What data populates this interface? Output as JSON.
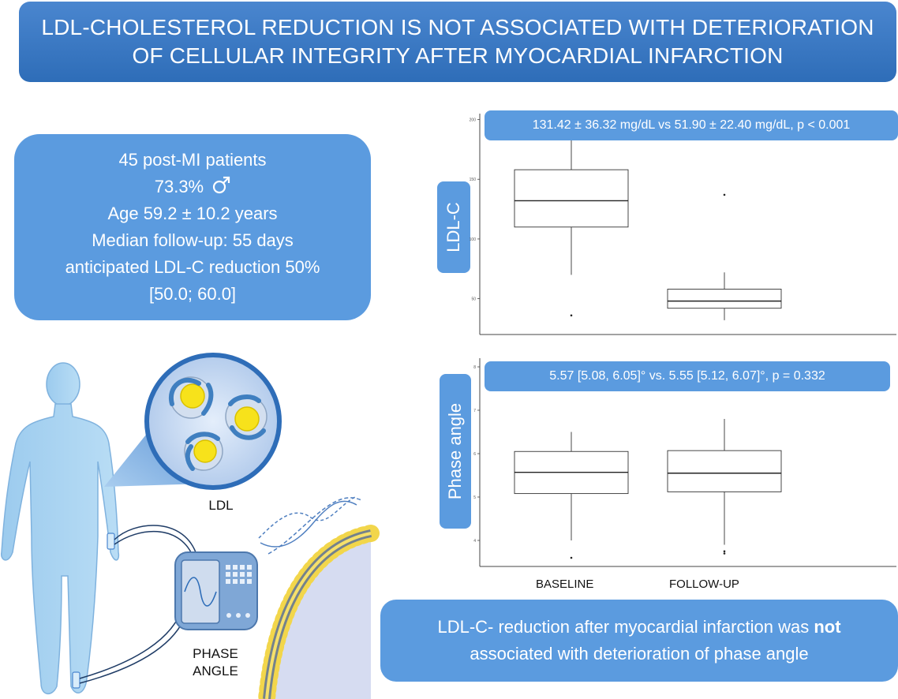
{
  "title": {
    "line1": "LDL-CHOLESTEROL REDUCTION IS NOT ASSOCIATED WITH DETERIORATION",
    "line2": "OF CELLULAR INTEGRITY AFTER MYOCARDIAL INFARCTION"
  },
  "study": {
    "patients": "45 post-MI patients",
    "male_pct": "73.3%",
    "age": "Age 59.2 ± 10.2 years",
    "followup": "Median follow-up: 55 days",
    "reduction_line1": "anticipated LDL-C reduction 50%",
    "reduction_line2": "[50.0; 60.0]"
  },
  "illustration": {
    "ldl_label": "LDL",
    "phase_label_line1": "PHASE",
    "phase_label_line2": "ANGLE"
  },
  "conclusion": {
    "before": "LDL-C- reduction after myocardial infarction was ",
    "bold": "not",
    "line2": "associated with deterioration of phase angle"
  },
  "colors": {
    "banner": "#2e6db8",
    "pill": "#5b9bdf",
    "body": "#a9d3f0",
    "ldl_core": "#f7e21b"
  },
  "chart_data": [
    {
      "type": "boxplot",
      "ylabel": "LDL-C",
      "stat_text": "131.42 ± 36.32 mg/dL  vs  51.90 ± 22.40 mg/dL, p < 0.001",
      "categories": [
        "BASELINE",
        "FOLLOW-UP"
      ],
      "ylim": [
        20,
        205
      ],
      "yticks": [
        50,
        100,
        150,
        200
      ],
      "boxes": [
        {
          "name": "BASELINE",
          "whisker_low": 70,
          "q1": 110,
          "median": 132,
          "q3": 158,
          "whisker_high": 205,
          "outliers": [
            36
          ]
        },
        {
          "name": "FOLLOW-UP",
          "whisker_low": 32,
          "q1": 42,
          "median": 48,
          "q3": 58,
          "whisker_high": 72,
          "outliers": [
            137
          ]
        }
      ]
    },
    {
      "type": "boxplot",
      "ylabel": "Phase angle",
      "stat_text": "5.57 [5.08, 6.05]° vs.  5.55 [5.12, 6.07]°,  p = 0.332",
      "categories": [
        "BASELINE",
        "FOLLOW-UP"
      ],
      "ylim": [
        3.4,
        8.2
      ],
      "yticks": [
        4,
        5,
        6,
        7,
        8
      ],
      "boxes": [
        {
          "name": "BASELINE",
          "whisker_low": 4,
          "q1": 5.08,
          "median": 5.57,
          "q3": 6.05,
          "whisker_high": 6.5,
          "outliers": [
            3.6
          ]
        },
        {
          "name": "FOLLOW-UP",
          "whisker_low": 3.9,
          "q1": 5.12,
          "median": 5.55,
          "q3": 6.07,
          "whisker_high": 6.8,
          "outliers": [
            3.7,
            3.75
          ]
        }
      ]
    }
  ]
}
